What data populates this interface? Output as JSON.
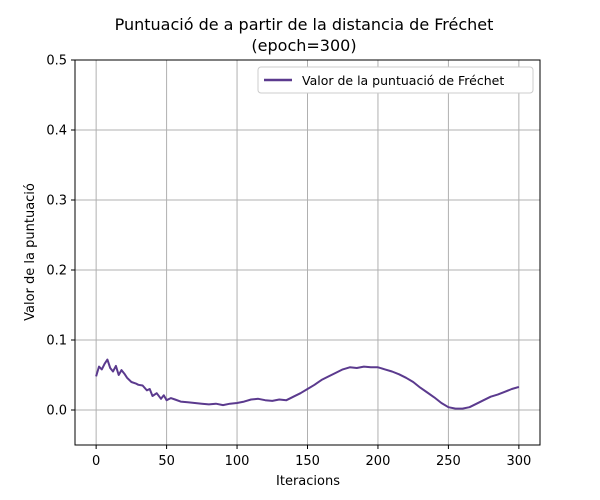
{
  "chart_data": {
    "type": "line",
    "title": "Puntuació de a partir de la distancia de Fréchet",
    "subtitle": "(epoch=300)",
    "xlabel": "Iteracions",
    "ylabel": "Valor de la puntuació",
    "xlim": [
      -15,
      315
    ],
    "ylim": [
      -0.05,
      0.5
    ],
    "xticks": [
      0,
      50,
      100,
      150,
      200,
      250,
      300
    ],
    "yticks": [
      0.0,
      0.1,
      0.2,
      0.3,
      0.4,
      0.5
    ],
    "grid": true,
    "legend_position": "top-right",
    "series": [
      {
        "name": "Valor de la puntuació de Fréchet",
        "color": "#5b3a8e",
        "x": [
          0,
          2,
          4,
          6,
          8,
          10,
          12,
          14,
          16,
          18,
          20,
          22,
          25,
          28,
          30,
          33,
          36,
          38,
          40,
          43,
          46,
          48,
          50,
          53,
          56,
          60,
          65,
          70,
          75,
          80,
          85,
          90,
          95,
          100,
          105,
          110,
          115,
          120,
          125,
          130,
          135,
          140,
          145,
          150,
          155,
          160,
          165,
          170,
          175,
          180,
          185,
          190,
          195,
          200,
          205,
          210,
          215,
          220,
          225,
          230,
          235,
          240,
          245,
          250,
          255,
          260,
          265,
          270,
          275,
          280,
          285,
          290,
          295,
          300
        ],
        "y": [
          0.048,
          0.062,
          0.058,
          0.066,
          0.072,
          0.06,
          0.055,
          0.063,
          0.05,
          0.057,
          0.052,
          0.046,
          0.04,
          0.038,
          0.036,
          0.035,
          0.028,
          0.03,
          0.02,
          0.024,
          0.016,
          0.021,
          0.014,
          0.017,
          0.015,
          0.012,
          0.011,
          0.01,
          0.009,
          0.008,
          0.009,
          0.007,
          0.009,
          0.01,
          0.012,
          0.015,
          0.016,
          0.014,
          0.013,
          0.015,
          0.014,
          0.019,
          0.024,
          0.03,
          0.036,
          0.043,
          0.048,
          0.053,
          0.058,
          0.061,
          0.06,
          0.062,
          0.061,
          0.061,
          0.058,
          0.055,
          0.051,
          0.046,
          0.04,
          0.032,
          0.025,
          0.018,
          0.01,
          0.004,
          0.002,
          0.002,
          0.004,
          0.009,
          0.014,
          0.019,
          0.022,
          0.026,
          0.03,
          0.033
        ]
      }
    ]
  }
}
